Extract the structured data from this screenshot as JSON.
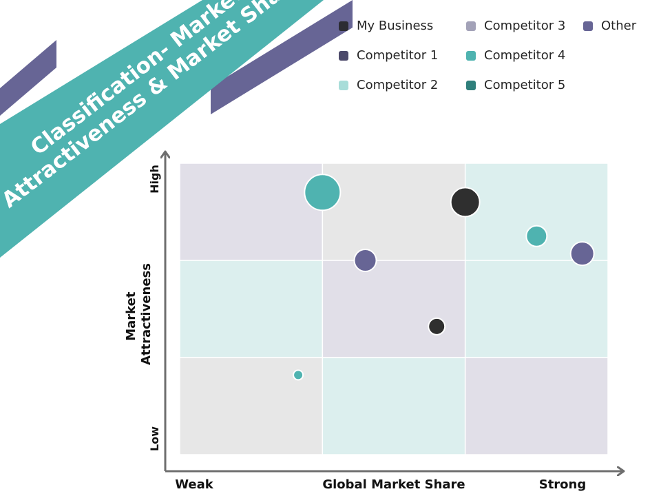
{
  "title": "Classification- Market Attractiveness & Market Share",
  "colors": {
    "banner_teal": "#4fb3b0",
    "banner_purple": "#676595",
    "grid_purple": "#e1dfe8",
    "grid_gray": "#e7e7e7",
    "grid_teal": "#dcefee",
    "axis": "#6e6e6e"
  },
  "legend": [
    {
      "label": "My Business",
      "color": "#2c2c33"
    },
    {
      "label": "Competitor 3",
      "color": "#a3a2b8"
    },
    {
      "label": "Other",
      "color": "#676595"
    },
    {
      "label": "Competitor 1",
      "color": "#4c4a6b"
    },
    {
      "label": "Competitor 4",
      "color": "#4fb3b0"
    },
    {
      "label": "",
      "color": ""
    },
    {
      "label": "Competitor 2",
      "color": "#a8ddd9"
    },
    {
      "label": "Competitor 5",
      "color": "#2f7f7b"
    },
    {
      "label": "",
      "color": ""
    }
  ],
  "chart_data": {
    "type": "scatter",
    "title": "Classification- Market Attractiveness & Market Share",
    "xlabel": "Global Market Share",
    "ylabel": "Market Attractiveness",
    "x_tick_labels": {
      "low": "Weak",
      "high": "Strong"
    },
    "y_tick_labels": {
      "low": "Low",
      "high": "High"
    },
    "grid_labels": [],
    "xlim": [
      0,
      3
    ],
    "ylim": [
      0,
      3
    ],
    "grid": {
      "rows": 3,
      "cols": 3,
      "cells": [
        [
          "purple",
          "gray",
          "teal"
        ],
        [
          "teal",
          "purple",
          "teal"
        ],
        [
          "gray",
          "teal",
          "purple"
        ]
      ]
    },
    "points": [
      {
        "x": 1.0,
        "y": 2.7,
        "size": 26,
        "color": "#4fb3b0"
      },
      {
        "x": 2.0,
        "y": 2.6,
        "size": 21,
        "color": "#2f2f2f"
      },
      {
        "x": 2.5,
        "y": 2.25,
        "size": 15,
        "color": "#4fb3b0"
      },
      {
        "x": 2.82,
        "y": 2.07,
        "size": 17,
        "color": "#676595"
      },
      {
        "x": 1.3,
        "y": 2.0,
        "size": 16,
        "color": "#676595"
      },
      {
        "x": 1.8,
        "y": 1.32,
        "size": 12,
        "color": "#2f2f2f"
      },
      {
        "x": 0.83,
        "y": 0.82,
        "size": 7,
        "color": "#4fb3b0"
      }
    ]
  }
}
